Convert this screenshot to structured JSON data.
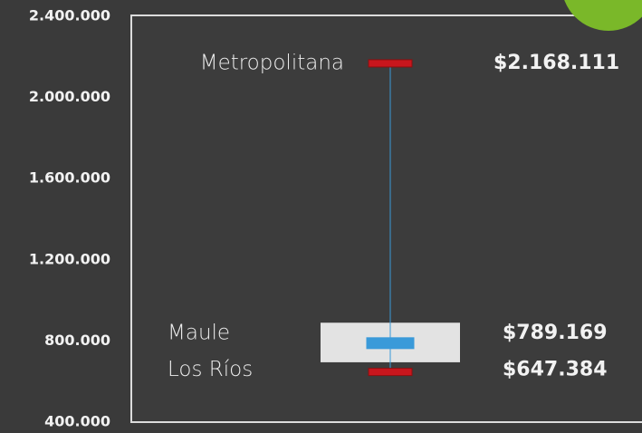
{
  "chart_data": {
    "type": "range",
    "categories": [
      "Metropolitana",
      "Maule",
      "Los Ríos"
    ],
    "values": [
      2168111,
      789169,
      647384
    ],
    "value_labels": [
      "$2.168.111",
      "$789.169",
      "$647.384"
    ],
    "colors": [
      "#c8161d",
      "#3a9ad9",
      "#c8161d"
    ],
    "box": [
      695000,
      890000
    ],
    "box_color": "#e3e3e3",
    "line_color": "#3a9ad9",
    "ylim": [
      400000,
      2400000
    ],
    "yticks": [
      {
        "value": 400000,
        "label": "400.000"
      },
      {
        "value": 800000,
        "label": "800.000"
      },
      {
        "value": 1200000,
        "label": "1.200.000"
      },
      {
        "value": 1600000,
        "label": "1.600.000"
      },
      {
        "value": 2000000,
        "label": "2.000.000"
      },
      {
        "value": 2400000,
        "label": "2.400.000"
      }
    ]
  }
}
